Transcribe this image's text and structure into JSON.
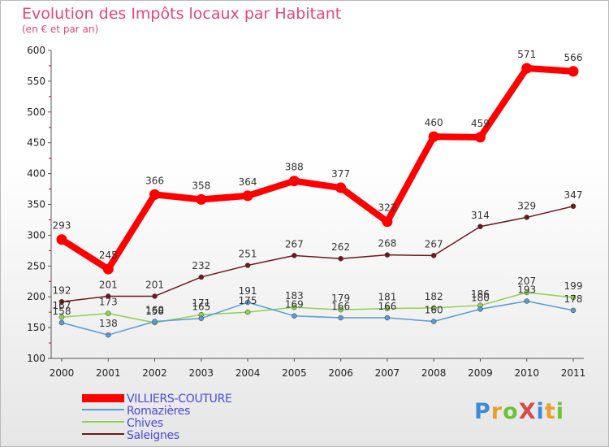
{
  "title": "Evolution des Impôts locaux par Habitant",
  "subtitle": "(en € et par an)",
  "logo": {
    "text": "ProXiti",
    "colors": [
      "#3f8ad6",
      "#e8a02c",
      "#6fc13b",
      "#d64a4a",
      "#3f8ad6",
      "#e8a02c",
      "#6fc13b"
    ]
  },
  "chart_data": {
    "type": "line",
    "x": [
      "2000",
      "2001",
      "2002",
      "2003",
      "2004",
      "2005",
      "2006",
      "2007",
      "2008",
      "2009",
      "2010",
      "2011"
    ],
    "ylim": [
      100,
      600
    ],
    "yticks": [
      100,
      150,
      200,
      250,
      300,
      350,
      400,
      450,
      500,
      550,
      600
    ],
    "grid": false,
    "legend_position": "bottom-left",
    "series": [
      {
        "name": "VILLIERS-COUTURE",
        "color": "#ff0000",
        "values": [
          293,
          245,
          366,
          358,
          364,
          388,
          377,
          322,
          460,
          459,
          571,
          566
        ],
        "labels": [
          "293",
          "245",
          "366",
          "358",
          "364",
          "388",
          "377",
          "322",
          "460",
          "459",
          "571",
          "566"
        ]
      },
      {
        "name": "Romazières",
        "color": "#5b9bd5",
        "values": [
          158,
          138,
          160,
          165,
          191,
          169,
          166,
          166,
          160,
          180,
          193,
          178
        ],
        "labels": [
          "158",
          "138",
          "160",
          "165",
          "191",
          "169",
          "166",
          "166",
          "160",
          "180",
          "193",
          "178"
        ]
      },
      {
        "name": "Chives",
        "color": "#92d050",
        "values": [
          167,
          173,
          158,
          171,
          175,
          183,
          179,
          181,
          182,
          186,
          207,
          199
        ],
        "labels": [
          "167",
          "173",
          "158",
          "171",
          "175",
          "183",
          "179",
          "181",
          "182",
          "186",
          "207",
          "199"
        ]
      },
      {
        "name": "Saleignes",
        "color": "#6b1a1f",
        "values": [
          192,
          201,
          201,
          232,
          251,
          267,
          262,
          268,
          267,
          314,
          329,
          347
        ],
        "labels": [
          "192",
          "201",
          "201",
          "232",
          "251",
          "267",
          "262",
          "268",
          "267",
          "314",
          "329",
          "347"
        ]
      }
    ]
  }
}
